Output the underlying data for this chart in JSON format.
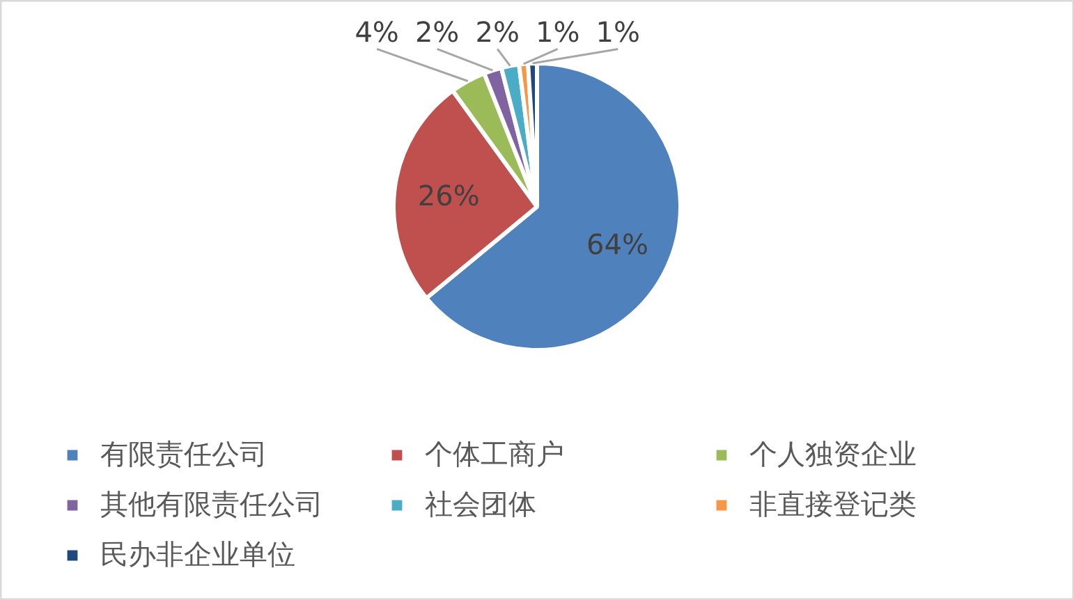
{
  "chart_data": {
    "type": "pie",
    "categories": [
      "有限责任公司",
      "个体工商户",
      "个人独资企业",
      "其他有限责任公司",
      "社会团体",
      "非直接登记类",
      "民办非企业单位"
    ],
    "values": [
      64,
      26,
      4,
      2,
      2,
      1,
      1
    ],
    "colors": [
      "#4f81bd",
      "#c0504d",
      "#9bbb59",
      "#8064a2",
      "#4bacc6",
      "#f79646",
      "#1f497d"
    ],
    "value_labels": [
      "64%",
      "26%",
      "4%",
      "2%",
      "2%",
      "1%",
      "1%"
    ],
    "legend": "bottom"
  }
}
